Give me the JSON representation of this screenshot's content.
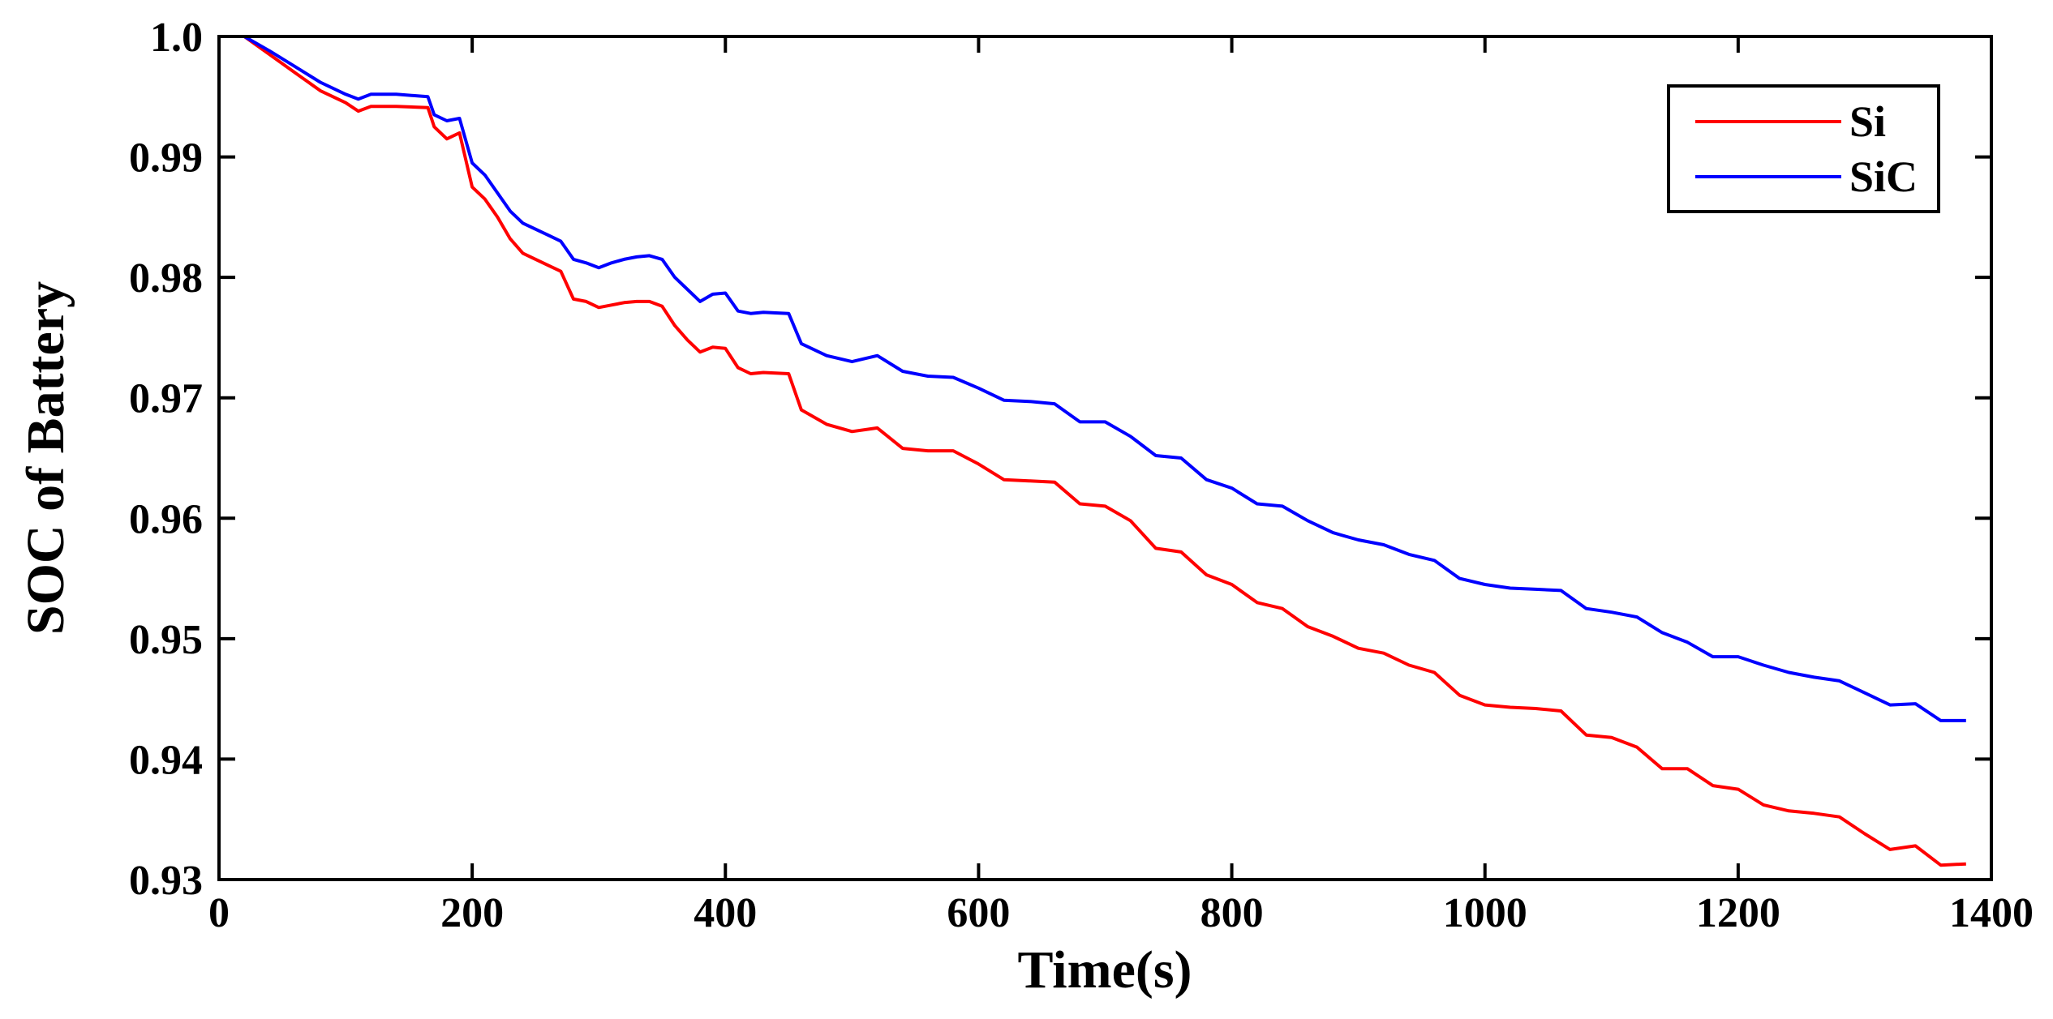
{
  "chart_data": {
    "type": "line",
    "title": "",
    "xlabel": "Time(s)",
    "ylabel": "SOC of Battery",
    "xlim": [
      0,
      1400
    ],
    "ylim": [
      0.93,
      1.0
    ],
    "xticks": [
      0,
      200,
      400,
      600,
      800,
      1000,
      1200,
      1400
    ],
    "xtick_labels": [
      "0",
      "200",
      "400",
      "600",
      "800",
      "1000",
      "1200",
      "1400"
    ],
    "yticks": [
      0.93,
      0.94,
      0.95,
      0.96,
      0.97,
      0.98,
      0.99,
      1.0
    ],
    "ytick_labels": [
      "0.93",
      "0.94",
      "0.95",
      "0.96",
      "0.97",
      "0.98",
      "0.99",
      "1.0"
    ],
    "grid": false,
    "legend_position": "top-right",
    "series": [
      {
        "name": "Si",
        "color": "#ff0000",
        "x": [
          0,
          20,
          40,
          60,
          80,
          100,
          110,
          120,
          140,
          165,
          170,
          180,
          190,
          200,
          210,
          220,
          230,
          240,
          260,
          270,
          280,
          290,
          300,
          310,
          320,
          330,
          340,
          350,
          360,
          370,
          380,
          390,
          400,
          410,
          420,
          430,
          450,
          460,
          480,
          500,
          520,
          540,
          560,
          580,
          600,
          620,
          640,
          660,
          680,
          700,
          720,
          740,
          760,
          780,
          800,
          820,
          840,
          860,
          880,
          900,
          920,
          940,
          960,
          980,
          1000,
          1020,
          1040,
          1060,
          1080,
          1100,
          1120,
          1140,
          1160,
          1180,
          1200,
          1220,
          1240,
          1260,
          1280,
          1300,
          1320,
          1340,
          1360,
          1380
        ],
        "y": [
          1.0,
          1.0,
          0.9985,
          0.997,
          0.9955,
          0.9945,
          0.9938,
          0.9942,
          0.9942,
          0.9941,
          0.9925,
          0.9915,
          0.992,
          0.9875,
          0.9865,
          0.985,
          0.9832,
          0.982,
          0.981,
          0.9805,
          0.9782,
          0.978,
          0.9775,
          0.9777,
          0.9779,
          0.978,
          0.978,
          0.9776,
          0.976,
          0.9748,
          0.9738,
          0.9742,
          0.9741,
          0.9725,
          0.972,
          0.9721,
          0.972,
          0.969,
          0.9678,
          0.9672,
          0.9675,
          0.9658,
          0.9656,
          0.9656,
          0.9645,
          0.9632,
          0.9631,
          0.963,
          0.9612,
          0.961,
          0.9598,
          0.9575,
          0.9572,
          0.9553,
          0.9545,
          0.953,
          0.9525,
          0.951,
          0.9502,
          0.9492,
          0.9488,
          0.9478,
          0.9472,
          0.9453,
          0.9445,
          0.9443,
          0.9442,
          0.944,
          0.942,
          0.9418,
          0.941,
          0.9392,
          0.9392,
          0.9378,
          0.9375,
          0.9362,
          0.9357,
          0.9355,
          0.9352,
          0.9338,
          0.9325,
          0.9328,
          0.9312,
          0.9313
        ]
      },
      {
        "name": "SiC",
        "color": "#0000ff",
        "x": [
          0,
          20,
          40,
          60,
          80,
          100,
          110,
          120,
          140,
          165,
          170,
          180,
          190,
          200,
          210,
          220,
          230,
          240,
          260,
          270,
          280,
          290,
          300,
          310,
          320,
          330,
          340,
          350,
          360,
          370,
          380,
          390,
          400,
          410,
          420,
          430,
          450,
          460,
          480,
          500,
          520,
          540,
          560,
          580,
          600,
          620,
          640,
          660,
          680,
          700,
          720,
          740,
          760,
          780,
          800,
          820,
          840,
          860,
          880,
          900,
          920,
          940,
          960,
          980,
          1000,
          1020,
          1040,
          1060,
          1080,
          1100,
          1120,
          1140,
          1160,
          1180,
          1200,
          1220,
          1240,
          1260,
          1280,
          1300,
          1320,
          1340,
          1360,
          1380
        ],
        "y": [
          1.0,
          1.0,
          0.9988,
          0.9975,
          0.9962,
          0.9952,
          0.9948,
          0.9952,
          0.9952,
          0.995,
          0.9935,
          0.993,
          0.9932,
          0.9895,
          0.9885,
          0.987,
          0.9855,
          0.9845,
          0.9835,
          0.983,
          0.9815,
          0.9812,
          0.9808,
          0.9812,
          0.9815,
          0.9817,
          0.9818,
          0.9815,
          0.98,
          0.979,
          0.978,
          0.9786,
          0.9787,
          0.9772,
          0.977,
          0.9771,
          0.977,
          0.9745,
          0.9735,
          0.973,
          0.9735,
          0.9722,
          0.9718,
          0.9717,
          0.9708,
          0.9698,
          0.9697,
          0.9695,
          0.968,
          0.968,
          0.9668,
          0.9652,
          0.965,
          0.9632,
          0.9625,
          0.9612,
          0.961,
          0.9598,
          0.9588,
          0.9582,
          0.9578,
          0.957,
          0.9565,
          0.955,
          0.9545,
          0.9542,
          0.9541,
          0.954,
          0.9525,
          0.9522,
          0.9518,
          0.9505,
          0.9497,
          0.9485,
          0.9485,
          0.9478,
          0.9472,
          0.9468,
          0.9465,
          0.9455,
          0.9445,
          0.9446,
          0.9432,
          0.9432
        ]
      }
    ]
  }
}
